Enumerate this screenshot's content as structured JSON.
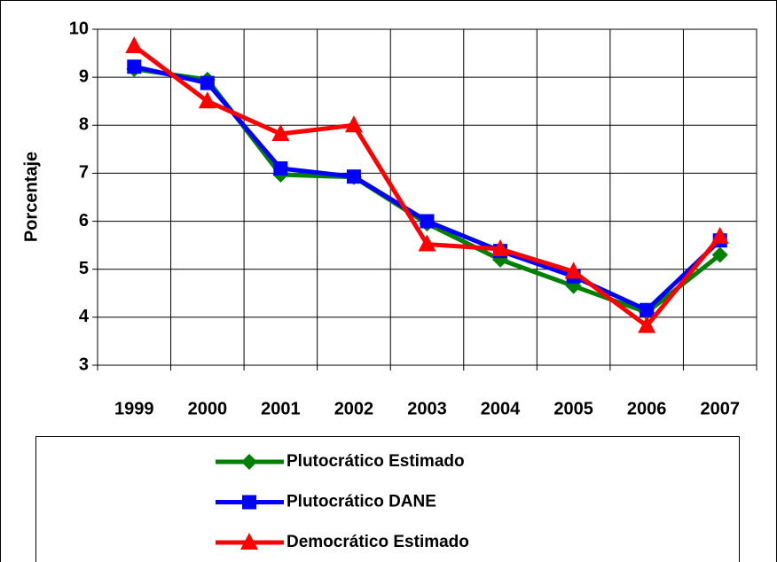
{
  "chart_data": {
    "type": "line",
    "y_label": "Porcentaje",
    "categories": [
      "1999",
      "2000",
      "2001",
      "2002",
      "2003",
      "2004",
      "2005",
      "2006",
      "2007"
    ],
    "series": [
      {
        "name": "Plutocrático Estimado",
        "color": "#008000",
        "marker": "diamond",
        "values": [
          9.17,
          8.95,
          6.97,
          6.92,
          5.95,
          5.2,
          4.65,
          4.1,
          5.3
        ]
      },
      {
        "name": "Plutocrático DANE",
        "color": "#0000ff",
        "marker": "square",
        "values": [
          9.22,
          8.88,
          7.1,
          6.93,
          6.0,
          5.38,
          4.85,
          4.15,
          5.6
        ]
      },
      {
        "name": "Democrático Estimado",
        "color": "#ff0000",
        "marker": "triangle",
        "values": [
          9.65,
          8.5,
          7.82,
          8.0,
          5.52,
          5.42,
          4.95,
          3.82,
          5.68
        ]
      }
    ],
    "ylim": [
      3,
      10
    ],
    "yticks": [
      3,
      4,
      5,
      6,
      7,
      8,
      9,
      10
    ],
    "grid": true
  }
}
